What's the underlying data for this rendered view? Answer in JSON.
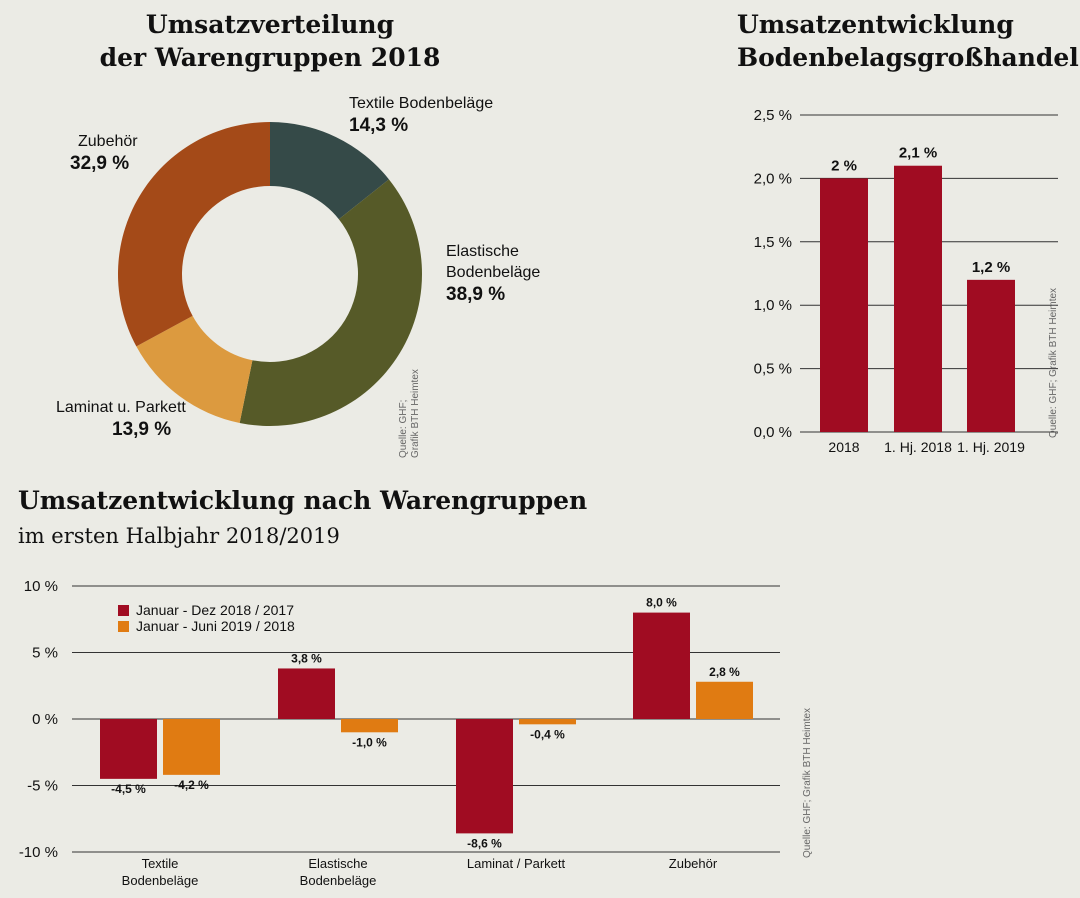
{
  "chart_data": [
    {
      "type": "pie",
      "donut": true,
      "title_lines": [
        "Umsatzverteilung",
        "der Warengruppen 2018"
      ],
      "slices": [
        {
          "label_lines": [
            "Textile Bodenbeläge"
          ],
          "value": 14.3,
          "value_label": "14,3 %",
          "color": "#354a48"
        },
        {
          "label_lines": [
            "Elastische",
            "Bodenbeläge"
          ],
          "value": 38.9,
          "value_label": "38,9 %",
          "color": "#565a28"
        },
        {
          "label_lines": [
            "Laminat u. Parkett"
          ],
          "value": 13.9,
          "value_label": "13,9 %",
          "color": "#dc9a3f"
        },
        {
          "label_lines": [
            "Zubehör"
          ],
          "value": 32.9,
          "value_label": "32,9 %",
          "color": "#a44a18"
        }
      ],
      "source_lines": [
        "Quelle: GHF;",
        "Grafik BTH Heimtex"
      ]
    },
    {
      "type": "bar",
      "title_lines": [
        "Umsatzentwicklung",
        "Bodenbelagsgroßhandel"
      ],
      "categories": [
        "2018",
        "1. Hj. 2018",
        "1. Hj. 2019"
      ],
      "values": [
        2.0,
        2.1,
        1.2
      ],
      "value_labels": [
        "2 %",
        "2,1 %",
        "1,2 %"
      ],
      "ylim": [
        0,
        2.5
      ],
      "yticks": [
        0,
        0.5,
        1.0,
        1.5,
        2.0,
        2.5
      ],
      "ytick_labels": [
        "0,0 %",
        "0,5 %",
        "1,0 %",
        "1,5 %",
        "2,0 %",
        "2,5 %"
      ],
      "grid": true,
      "color": "#a00c22",
      "source": "Quelle: GHF; Grafik BTH Heimtex"
    },
    {
      "type": "bar",
      "title": "Umsatzentwicklung nach Warengruppen",
      "subtitle": "im ersten Halbjahr 2018/2019",
      "categories": [
        [
          "Textile",
          "Bodenbeläge"
        ],
        [
          "Elastische",
          "Bodenbeläge"
        ],
        [
          "Laminat / Parkett"
        ],
        [
          "Zubehör"
        ]
      ],
      "series": [
        {
          "name": "Januar - Dez 2018 / 2017",
          "values": [
            -4.5,
            3.8,
            -8.6,
            8.0
          ],
          "value_labels": [
            "-4,5 %",
            "3,8 %",
            "-8,6 %",
            "8,0 %"
          ],
          "color": "#a00c22"
        },
        {
          "name": "Januar - Juni 2019 / 2018",
          "values": [
            -4.2,
            -1.0,
            -0.4,
            2.8
          ],
          "value_labels": [
            "-4,2 %",
            "-1,0 %",
            "-0,4 %",
            "2,8 %"
          ],
          "color": "#e07b12"
        }
      ],
      "ylim": [
        -10,
        10
      ],
      "yticks": [
        -10,
        -5,
        0,
        5,
        10
      ],
      "ytick_labels": [
        "-10 %",
        "-5 %",
        "0 %",
        "5 %",
        "10 %"
      ],
      "grid": true,
      "legend": "top-left",
      "source": "Quelle: GHF; Grafik BTH Heimtex"
    }
  ]
}
